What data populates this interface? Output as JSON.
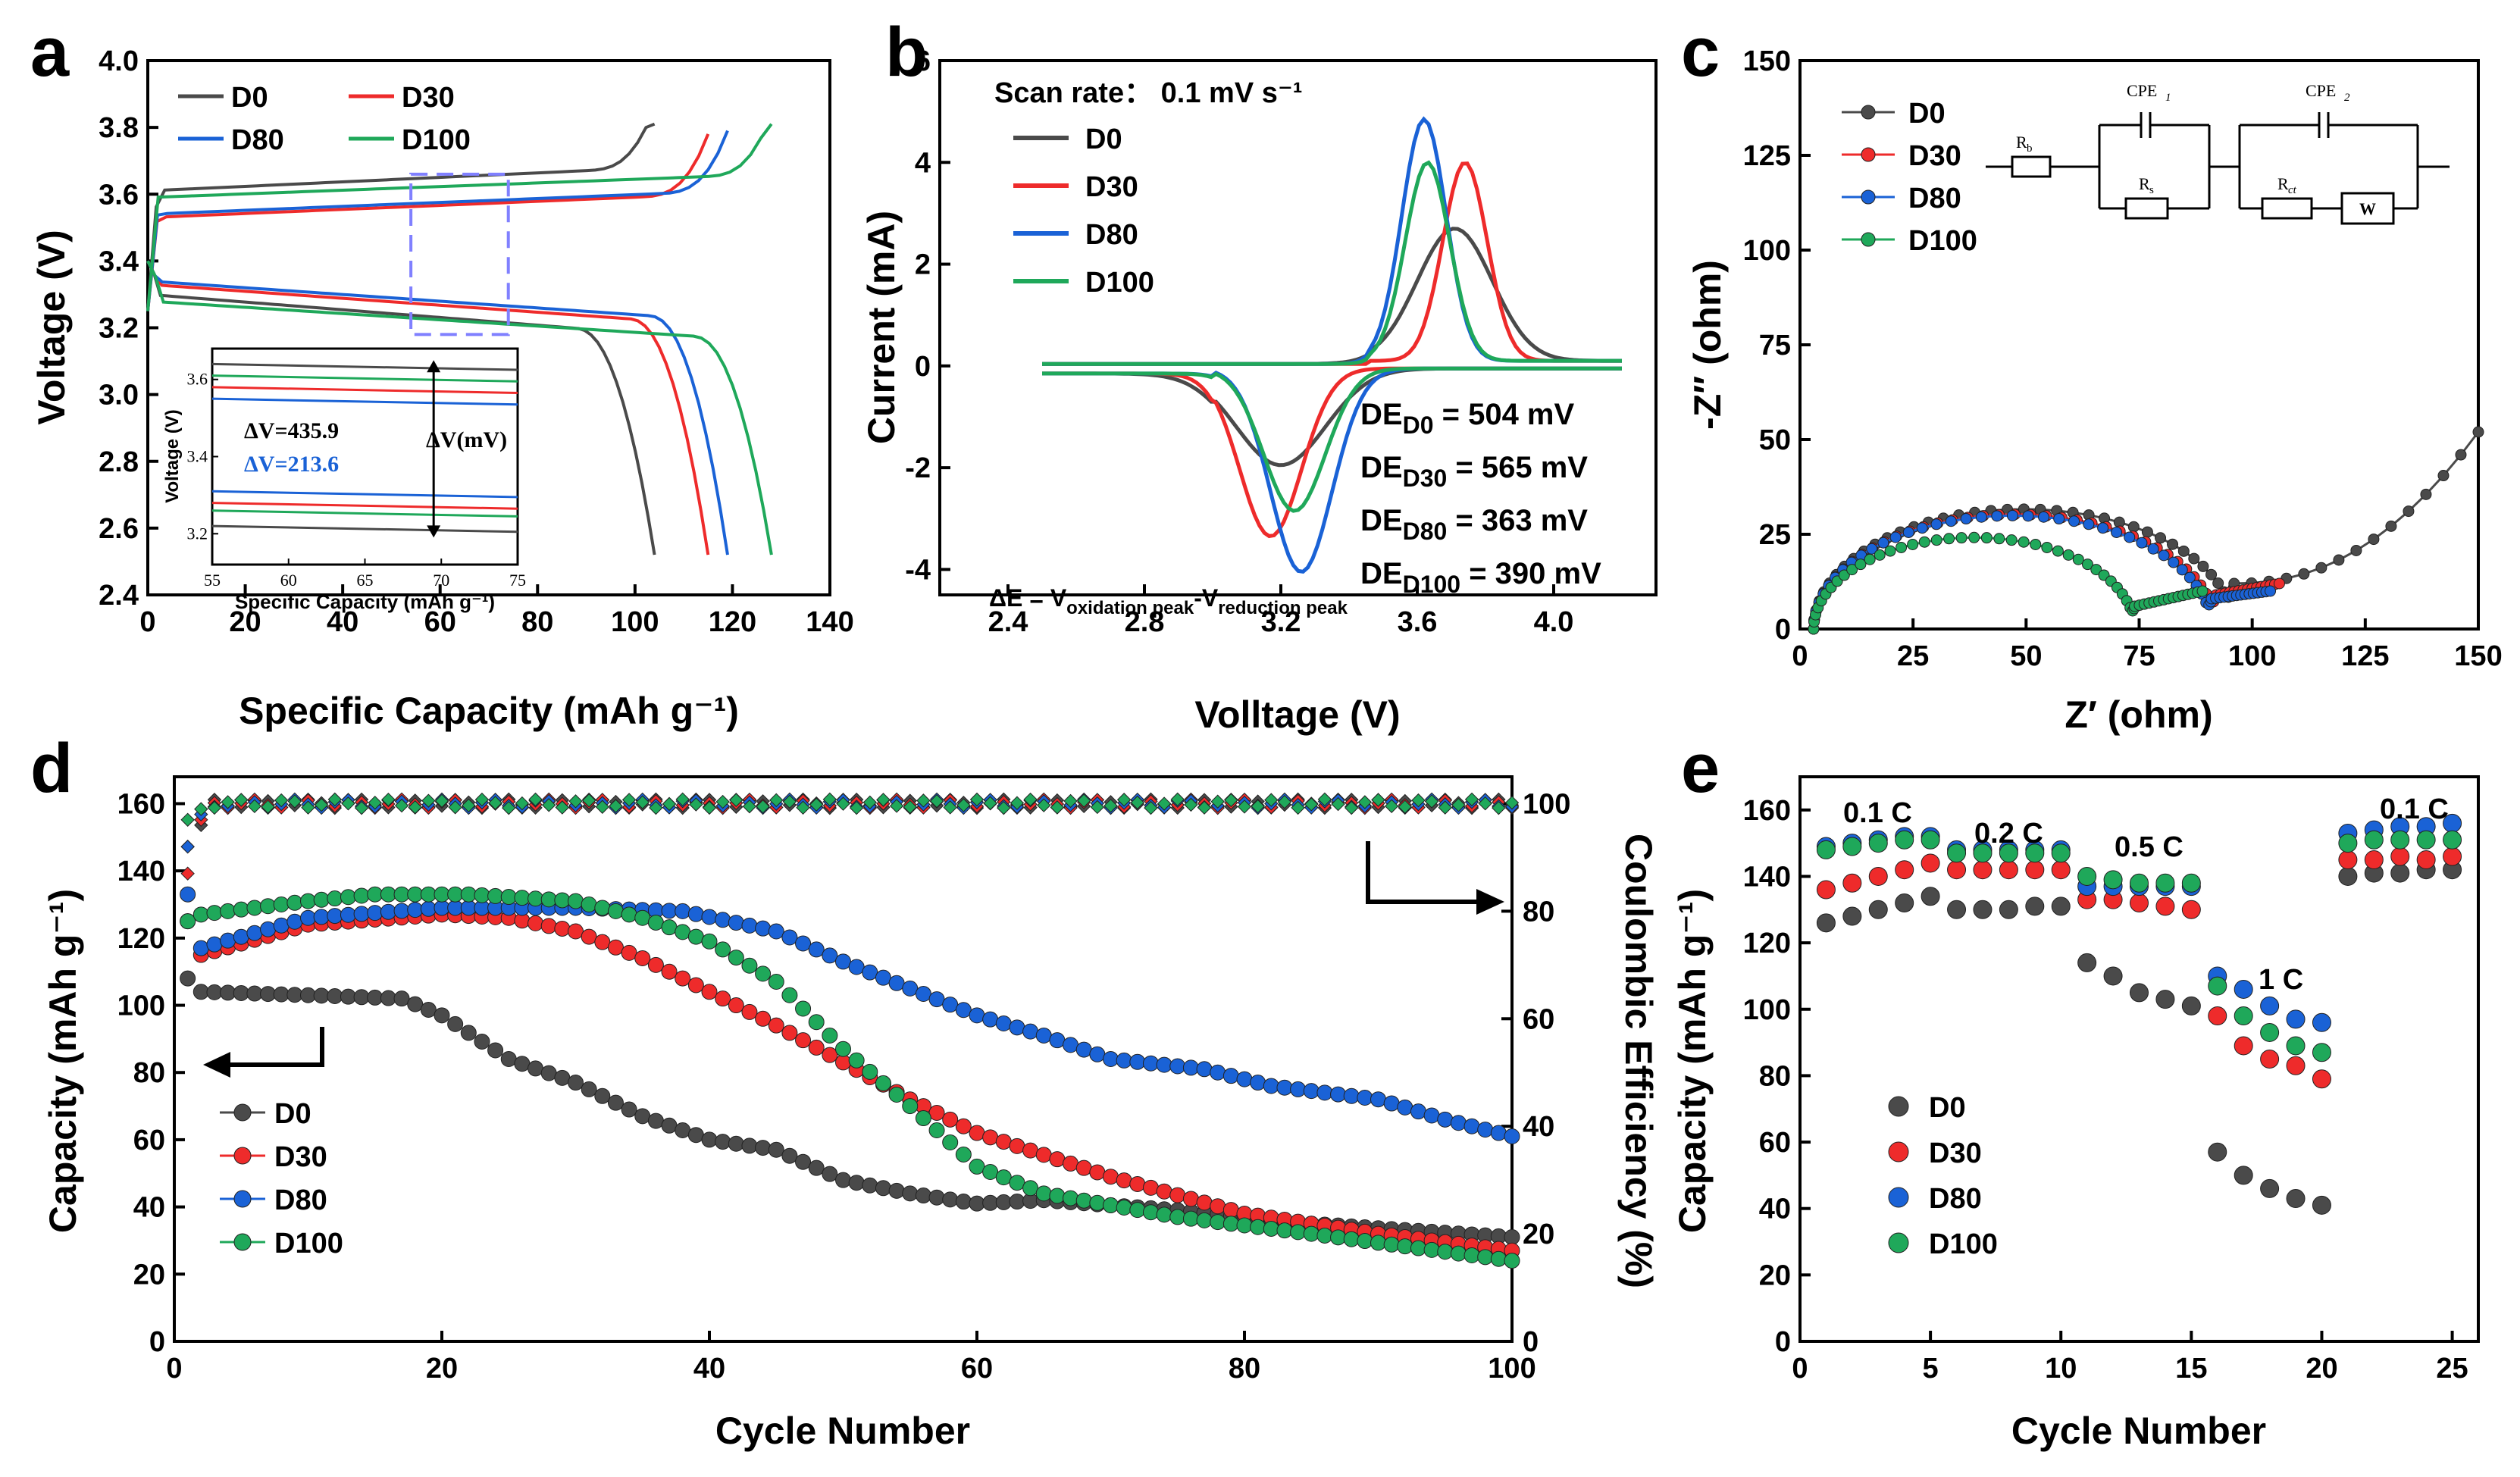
{
  "colors": {
    "D0": "#4a4a4a",
    "D30": "#ee2b2b",
    "D80": "#1a62d6",
    "D100": "#1fa85a",
    "axis": "#000000",
    "dash": "#8080ff"
  },
  "series_names": [
    "D0",
    "D30",
    "D80",
    "D100"
  ],
  "chart_data": [
    {
      "panel": "a",
      "type": "line",
      "xlabel": "Specific Capacity (mAh g⁻¹)",
      "ylabel": "Voltage (V)",
      "xlim": [
        0,
        140
      ],
      "ylim": [
        2.4,
        4.0
      ],
      "xticks": [
        "0",
        "20",
        "40",
        "60",
        "80",
        "100",
        "120",
        "140"
      ],
      "yticks": [
        "2.4",
        "2.6",
        "2.8",
        "3.0",
        "3.2",
        "3.4",
        "3.6",
        "3.8",
        "4.0"
      ],
      "legend": [
        "D0",
        "D80",
        "D30",
        "D100"
      ],
      "max_capacity": {
        "D0": 104,
        "D30": 115,
        "D80": 119,
        "D100": 128
      },
      "charge_plateau_V": {
        "D0": 3.61,
        "D30": 3.53,
        "D80": 3.54,
        "D100": 3.59
      },
      "discharge_plateau_V": {
        "D0": 3.3,
        "D30": 3.33,
        "D80": 3.34,
        "D100": 3.28
      },
      "dashed_box": {
        "x": [
          54,
          74
        ],
        "y": [
          3.18,
          3.66
        ]
      },
      "inset": {
        "xlabel": "Specific Capacity (mAh g⁻¹)",
        "ylabel": "Voltage (V)",
        "xticks": [
          "55",
          "60",
          "65",
          "70",
          "75"
        ],
        "yticks": [
          "3.2",
          "3.4",
          "3.6"
        ],
        "dv1": "ΔV=435.9",
        "dv2": "ΔV=213.6",
        "dv_label": "ΔV(mV)"
      }
    },
    {
      "panel": "b",
      "type": "line",
      "xlabel": "Volltage (V)",
      "ylabel": "Current (mA)",
      "xlim": [
        2.2,
        4.3
      ],
      "ylim": [
        -4.5,
        6
      ],
      "xticks": [
        "2.4",
        "2.8",
        "3.2",
        "3.6",
        "4.0"
      ],
      "yticks": [
        "-4",
        "-2",
        "0",
        "2",
        "4",
        "6"
      ],
      "scan_rate": "Scan rate： 0.1 mV s⁻¹",
      "legend": [
        "D0",
        "D30",
        "D80",
        "D100"
      ],
      "peaks": {
        "D0": {
          "ox": [
            3.71,
            2.6
          ],
          "red": [
            3.2,
            -1.9
          ]
        },
        "D30": {
          "ox": [
            3.74,
            3.9
          ],
          "red": [
            3.17,
            -3.3
          ]
        },
        "D80": {
          "ox": [
            3.62,
            4.75
          ],
          "red": [
            3.26,
            -4.0
          ]
        },
        "D100": {
          "ox": [
            3.63,
            3.9
          ],
          "red": [
            3.24,
            -2.8
          ]
        }
      },
      "de": [
        {
          "sub": "D0",
          "value": " = 504 mV"
        },
        {
          "sub": "D30",
          "value": " = 565 mV"
        },
        {
          "sub": "D80",
          "value": " = 363 mV"
        },
        {
          "sub": "D100",
          "value": " = 390 mV"
        }
      ],
      "formula": {
        "a": "ΔE = V",
        "s1": "oxidation peak",
        "b": "-V",
        "s2": "reduction peak"
      }
    },
    {
      "panel": "c",
      "type": "scatter",
      "xlabel": "Z′ (ohm)",
      "ylabel": "-Z″ (ohm)",
      "xlim": [
        0,
        150
      ],
      "ylim": [
        0,
        150
      ],
      "xticks": [
        "0",
        "25",
        "50",
        "75",
        "100",
        "125",
        "150"
      ],
      "yticks": [
        "0",
        "25",
        "50",
        "75",
        "100",
        "125",
        "150"
      ],
      "legend": [
        "D0",
        "D30",
        "D80",
        "D100"
      ],
      "semicircle": {
        "D0": {
          "start": 3,
          "end": 96,
          "min": 12,
          "end_x": 150,
          "end_y": 52
        },
        "D30": {
          "start": 3,
          "end": 92,
          "min": 9,
          "end_x": 106,
          "end_y": 12
        },
        "D80": {
          "start": 3,
          "end": 91,
          "min": 8,
          "end_x": 104,
          "end_y": 10
        },
        "D100": {
          "start": 3,
          "end": 74,
          "min": 6,
          "end_x": 89,
          "end_y": 10
        }
      },
      "circuit": {
        "rb": "R",
        "rb_sub": "b",
        "cpe1": "CPE",
        "cpe1_sub": "1",
        "rs": "R",
        "rs_sub": "s",
        "cpe2": "CPE",
        "cpe2_sub": "2",
        "rct": "R",
        "rct_sub": "ct",
        "w": "W"
      }
    },
    {
      "panel": "d",
      "type": "scatter",
      "xlabel": "Cycle Number",
      "ylabel": "Capacity (mAh g⁻¹)",
      "y2label": "Coulombic Efficiency (%)",
      "xlim": [
        0,
        100
      ],
      "ylim": [
        0,
        168
      ],
      "y2lim": [
        0,
        105
      ],
      "xticks": [
        "0",
        "20",
        "40",
        "60",
        "80",
        "100"
      ],
      "yticks": [
        "0",
        "20",
        "40",
        "60",
        "80",
        "100",
        "120",
        "140",
        "160"
      ],
      "y2ticks": [
        "0",
        "20",
        "40",
        "60",
        "80",
        "100"
      ],
      "legend": [
        "D0",
        "D30",
        "D80",
        "D100"
      ],
      "capacity_keypoints": {
        "D0": [
          [
            1,
            108
          ],
          [
            2,
            104
          ],
          [
            10,
            103
          ],
          [
            17,
            102
          ],
          [
            20,
            97
          ],
          [
            25,
            84
          ],
          [
            30,
            77
          ],
          [
            35,
            67
          ],
          [
            40,
            60
          ],
          [
            45,
            57
          ],
          [
            50,
            48
          ],
          [
            55,
            44
          ],
          [
            60,
            41
          ],
          [
            65,
            42
          ],
          [
            75,
            39
          ],
          [
            85,
            35
          ],
          [
            100,
            31
          ]
        ],
        "D30": [
          [
            1,
            125
          ],
          [
            2,
            115
          ],
          [
            10,
            124
          ],
          [
            20,
            127
          ],
          [
            25,
            126
          ],
          [
            30,
            122
          ],
          [
            35,
            114
          ],
          [
            40,
            104
          ],
          [
            45,
            94
          ],
          [
            50,
            83
          ],
          [
            55,
            72
          ],
          [
            60,
            62
          ],
          [
            70,
            49
          ],
          [
            80,
            38
          ],
          [
            90,
            32
          ],
          [
            100,
            27
          ]
        ],
        "D80": [
          [
            1,
            133
          ],
          [
            2,
            117
          ],
          [
            10,
            126
          ],
          [
            20,
            129
          ],
          [
            30,
            129
          ],
          [
            38,
            128
          ],
          [
            45,
            122
          ],
          [
            50,
            113
          ],
          [
            55,
            105
          ],
          [
            60,
            97
          ],
          [
            65,
            91
          ],
          [
            70,
            84
          ],
          [
            77,
            81
          ],
          [
            82,
            76
          ],
          [
            90,
            72
          ],
          [
            95,
            66
          ],
          [
            100,
            61
          ]
        ],
        "D100": [
          [
            1,
            125
          ],
          [
            2,
            127
          ],
          [
            10,
            131
          ],
          [
            15,
            133
          ],
          [
            22,
            133
          ],
          [
            30,
            131
          ],
          [
            35,
            126
          ],
          [
            40,
            119
          ],
          [
            45,
            107
          ],
          [
            50,
            87
          ],
          [
            55,
            70
          ],
          [
            60,
            52
          ],
          [
            65,
            44
          ],
          [
            75,
            37
          ],
          [
            85,
            32
          ],
          [
            100,
            24
          ]
        ]
      },
      "ce_percent": {
        "start": [
          92,
          87,
          92,
          97
        ],
        "steady": 100
      }
    },
    {
      "panel": "e",
      "type": "scatter",
      "xlabel": "Cycle Number",
      "ylabel": "Capacity (mAh g⁻¹)",
      "xlim": [
        0,
        26
      ],
      "ylim": [
        0,
        170
      ],
      "xticks": [
        "0",
        "5",
        "10",
        "15",
        "20",
        "25"
      ],
      "yticks": [
        "0",
        "20",
        "40",
        "60",
        "80",
        "100",
        "120",
        "140",
        "160"
      ],
      "rate_labels": [
        "0.1 C",
        "0.2 C",
        "0.5 C",
        "1 C",
        "0.1 C"
      ],
      "legend": [
        "D0",
        "D30",
        "D80",
        "D100"
      ],
      "values": {
        "D0": [
          126,
          128,
          130,
          132,
          134,
          130,
          130,
          130,
          131,
          131,
          114,
          110,
          105,
          103,
          101,
          57,
          50,
          46,
          43,
          41,
          140,
          141,
          141,
          142,
          142
        ],
        "D30": [
          136,
          138,
          140,
          142,
          144,
          142,
          142,
          142,
          142,
          142,
          133,
          133,
          132,
          131,
          130,
          98,
          89,
          85,
          83,
          79,
          145,
          145,
          146,
          145,
          146
        ],
        "D80": [
          149,
          150,
          151,
          152,
          152,
          148,
          148,
          148,
          148,
          148,
          137,
          137,
          137,
          137,
          137,
          110,
          106,
          101,
          97,
          96,
          153,
          154,
          155,
          155,
          156
        ],
        "D100": [
          148,
          149,
          150,
          151,
          151,
          147,
          147,
          147,
          147,
          147,
          140,
          139,
          138,
          138,
          138,
          107,
          98,
          93,
          89,
          87,
          150,
          151,
          151,
          151,
          151
        ]
      }
    }
  ]
}
